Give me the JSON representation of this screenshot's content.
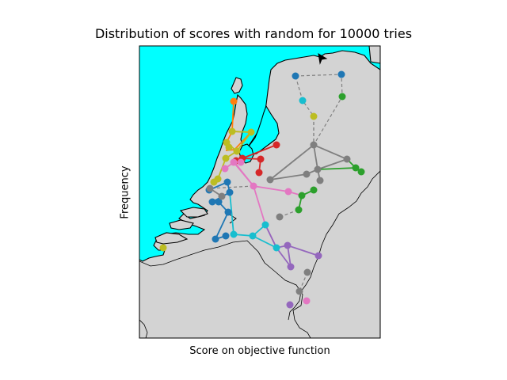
{
  "title": "Distribution of scores with random for 10000 tries",
  "xlabel": "Score on objective function",
  "ylabel": "Frequency",
  "colors": {
    "sea": "#00ffff",
    "land": "#d3d3d3",
    "coast": "#000000",
    "dashed_connection": "#808080"
  },
  "networks": [
    {
      "name": "blue-network",
      "color": "#1f77b4"
    },
    {
      "name": "orange-network",
      "color": "#ff7f0e"
    },
    {
      "name": "green-network",
      "color": "#2ca02c"
    },
    {
      "name": "red-network",
      "color": "#d62728"
    },
    {
      "name": "purple-network",
      "color": "#9467bd"
    },
    {
      "name": "pink-network",
      "color": "#e377c2"
    },
    {
      "name": "gray-network",
      "color": "#7f7f7f"
    },
    {
      "name": "olive-network",
      "color": "#bcbd22"
    },
    {
      "name": "cyan-network",
      "color": "#17becf"
    }
  ]
}
